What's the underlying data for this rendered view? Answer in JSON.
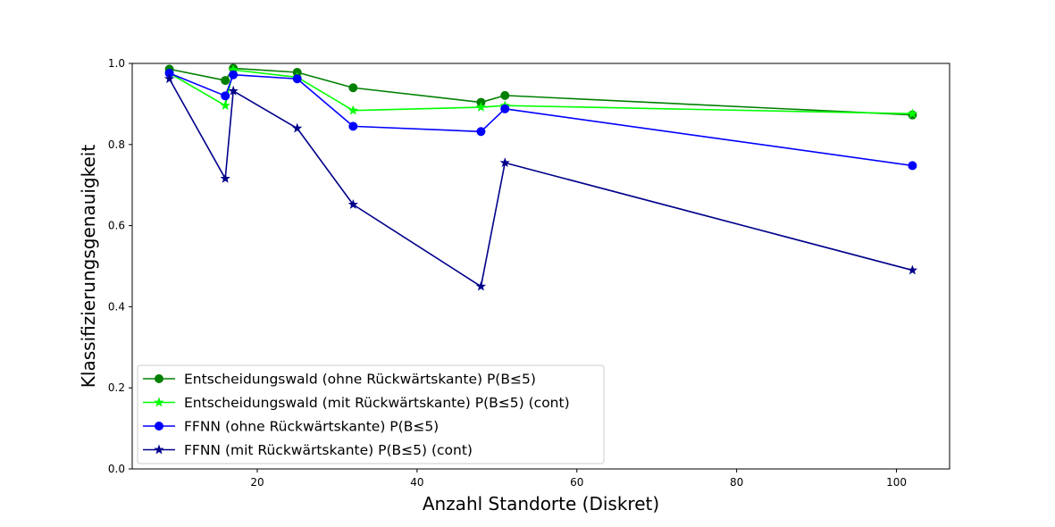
{
  "chart_data": {
    "type": "line",
    "title": "",
    "xlabel": "Anzahl Standorte (Diskret)",
    "ylabel": "Klassifizierungsgenauigkeit",
    "xlim": [
      4.35,
      106.65
    ],
    "ylim": [
      0.0,
      1.0
    ],
    "xticks": [
      20,
      40,
      60,
      80,
      100
    ],
    "yticks": [
      0.0,
      0.2,
      0.4,
      0.6,
      0.8,
      1.0
    ],
    "xtick_labels": [
      "20",
      "40",
      "60",
      "80",
      "100"
    ],
    "ytick_labels": [
      "0.0",
      "0.2",
      "0.4",
      "0.6",
      "0.8",
      "1.0"
    ],
    "grid": false,
    "legend_position": "lower-left",
    "series": [
      {
        "name": "Entscheidungswald (ohne Rückwärtskante) P(B≤5)",
        "color": "#008000",
        "marker": "circle",
        "x": [
          9,
          16,
          17,
          25,
          32,
          48,
          51,
          102
        ],
        "y": [
          0.986,
          0.958,
          0.988,
          0.978,
          0.94,
          0.904,
          0.921,
          0.873
        ]
      },
      {
        "name": "Entscheidungswald (mit Rückwärtskante) P(B≤5) (cont)",
        "color": "#00ff00",
        "marker": "star",
        "x": [
          9,
          16,
          17,
          25,
          32,
          48,
          51,
          102
        ],
        "y": [
          0.976,
          0.896,
          0.984,
          0.966,
          0.884,
          0.892,
          0.896,
          0.876
        ]
      },
      {
        "name": "FFNN (ohne Rückwärtskante) P(B≤5)",
        "color": "#0000ff",
        "marker": "circle",
        "x": [
          9,
          16,
          17,
          25,
          32,
          48,
          51,
          102
        ],
        "y": [
          0.976,
          0.92,
          0.972,
          0.962,
          0.845,
          0.832,
          0.888,
          0.748
        ]
      },
      {
        "name": "FFNN (mit Rückwärtskante) P(B≤5) (cont)",
        "color": "#00008b",
        "marker": "star",
        "x": [
          9,
          16,
          17,
          25,
          32,
          48,
          51,
          102
        ],
        "y": [
          0.962,
          0.716,
          0.932,
          0.84,
          0.652,
          0.45,
          0.755,
          0.49
        ]
      }
    ]
  }
}
